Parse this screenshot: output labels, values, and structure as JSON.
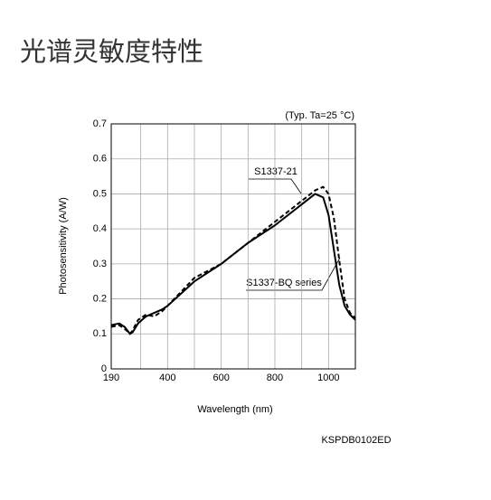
{
  "page_title": "光谱灵敏度特性",
  "chart_data": {
    "type": "line",
    "note": "(Typ. Ta=25 °C)",
    "x_label": "Wavelength (nm)",
    "y_label": "Photosensitivity (A/W)",
    "code": "KSPDB0102ED",
    "x": [
      190,
      220,
      240,
      260,
      270,
      290,
      320,
      350,
      380,
      400,
      500,
      600,
      700,
      800,
      900,
      950,
      980,
      1000,
      1020,
      1040,
      1060,
      1080,
      1100
    ],
    "series": [
      {
        "name": "S1337-BQ series",
        "color": "#000000",
        "dash": false,
        "values": [
          0.125,
          0.13,
          0.12,
          0.1,
          0.105,
          0.13,
          0.15,
          0.16,
          0.17,
          0.18,
          0.25,
          0.3,
          0.36,
          0.41,
          0.47,
          0.5,
          0.49,
          0.44,
          0.34,
          0.24,
          0.18,
          0.155,
          0.14
        ]
      },
      {
        "name": "S1337-21",
        "color": "#000000",
        "dash": true,
        "values": [
          0.12,
          0.125,
          0.115,
          0.1,
          0.11,
          0.14,
          0.155,
          0.15,
          0.165,
          0.18,
          0.26,
          0.3,
          0.36,
          0.42,
          0.48,
          0.51,
          0.52,
          0.5,
          0.43,
          0.31,
          0.2,
          0.16,
          0.145
        ]
      }
    ],
    "xlim": [
      190,
      1100
    ],
    "xticks": [
      190,
      400,
      600,
      800,
      1000
    ],
    "x_minor_grid": [
      300,
      500,
      700,
      900
    ],
    "ylim": [
      0,
      0.7
    ],
    "yticks": [
      0,
      0.1,
      0.2,
      0.3,
      0.4,
      0.5,
      0.6,
      0.7
    ],
    "grid": true
  }
}
